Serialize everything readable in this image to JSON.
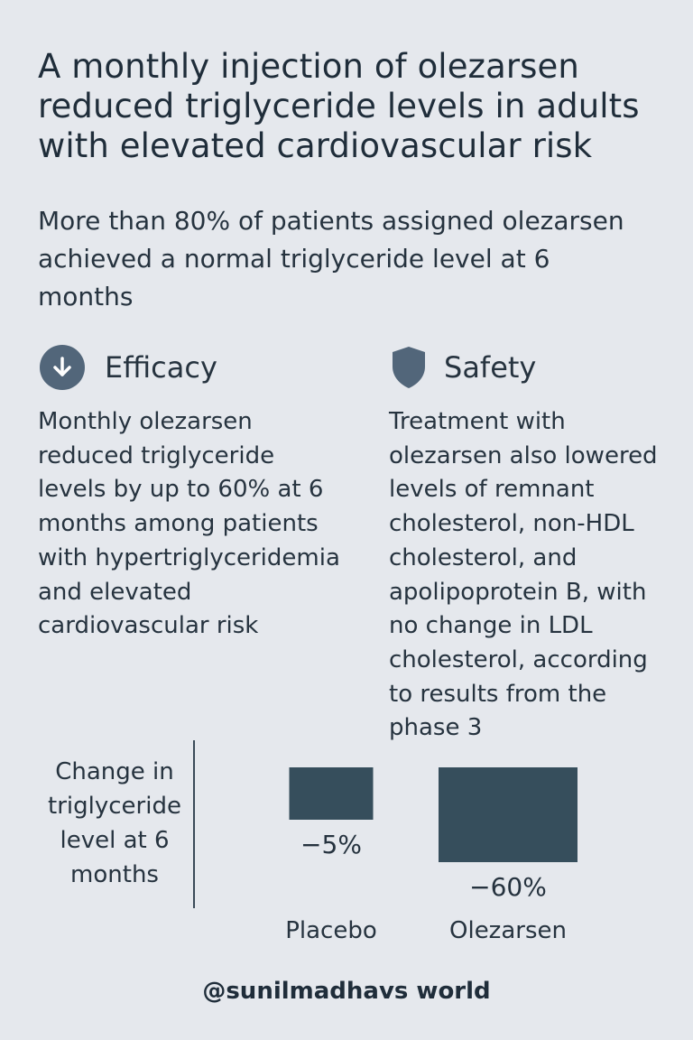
{
  "headline": "A monthly injection of olezarsen reduced triglyceride levels in adults with elevated cardiovascular risk",
  "subhead": "More than 80% of patients assigned olezarsen achieved a normal triglyceride level at 6 months",
  "efficacy": {
    "title": "Efficacy",
    "icon": "arrow-down-circle-icon",
    "body": "Monthly olezarsen reduced triglyceride levels by up to 60% at 6 months among patients with hypertriglyceridemia and elevated cardiovascular risk"
  },
  "safety": {
    "title": "Safety",
    "icon": "shield-icon",
    "body": "Treatment with olezarsen also lowered levels of remnant cholesterol, non-HDL cholesterol, and apolipoprotein B, with no change in LDL cholesterol, according to results from the phase 3"
  },
  "chart_data": {
    "type": "bar",
    "ylabel": "Change in triglyceride level at 6 months",
    "categories": [
      "Placebo",
      "Olezarsen"
    ],
    "values": [
      -5,
      -60
    ],
    "value_labels": [
      "−5%",
      "−60%"
    ],
    "bar_color": "#364e5c"
  },
  "footer": "@sunilmadhavs world",
  "colors": {
    "background": "#e5e8ed",
    "text": "#26333f",
    "icon": "#52667a",
    "bar": "#364e5c"
  }
}
